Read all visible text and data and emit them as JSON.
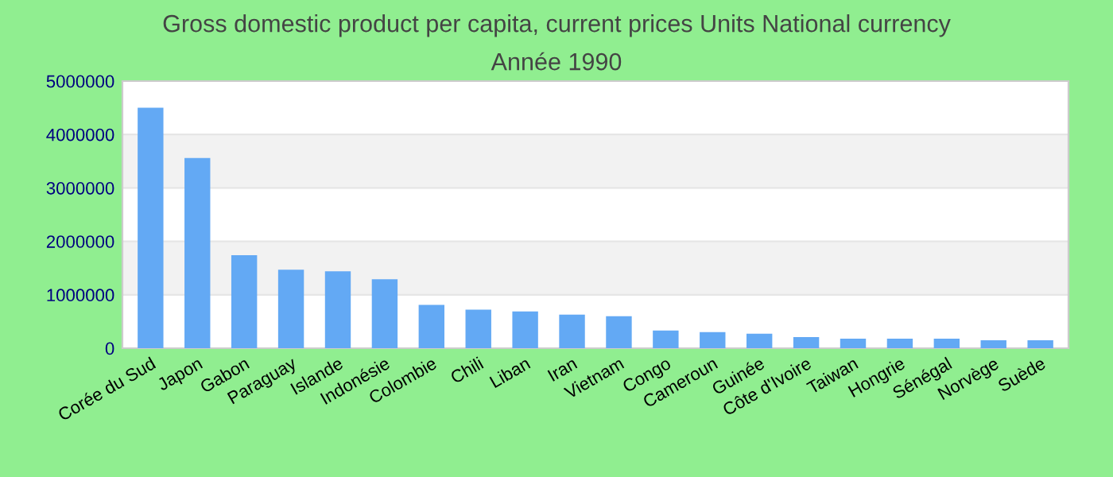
{
  "chart_data": {
    "type": "bar",
    "title": "Gross domestic product per capita, current prices Units National currency",
    "subtitle": "Année 1990",
    "categories": [
      "Corée du Sud",
      "Japon",
      "Gabon",
      "Paraguay",
      "Islande",
      "Indonésie",
      "Colombie",
      "Chili",
      "Liban",
      "Iran",
      "Vietnam",
      "Congo",
      "Cameroun",
      "Guinée",
      "Côte d'Ivoire",
      "Taiwan",
      "Hongrie",
      "Sénégal",
      "Norvège",
      "Suède"
    ],
    "values": [
      4500000,
      3560000,
      1740000,
      1470000,
      1440000,
      1290000,
      810000,
      720000,
      690000,
      630000,
      600000,
      330000,
      300000,
      270000,
      210000,
      180000,
      180000,
      180000,
      150000,
      150000
    ],
    "color": "#63a9f4",
    "ylim": [
      0,
      5000000
    ],
    "yticks": [
      0,
      1000000,
      2000000,
      3000000,
      4000000,
      5000000
    ],
    "grid": "y",
    "legend": false
  }
}
